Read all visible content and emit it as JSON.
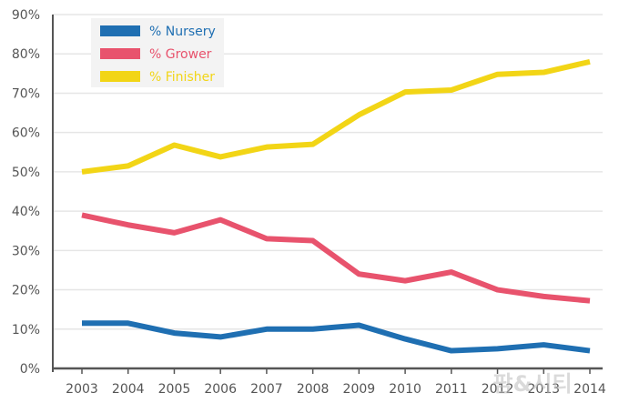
{
  "chart_data": {
    "type": "line",
    "title": "",
    "xlabel": "",
    "ylabel": "",
    "x": [
      "2003",
      "2004",
      "2005",
      "2006",
      "2007",
      "2008",
      "2009",
      "2010",
      "2011",
      "2012",
      "2013",
      "2014"
    ],
    "ylim": [
      0,
      90
    ],
    "yticks": [
      "0%",
      "10%",
      "20%",
      "30%",
      "40%",
      "50%",
      "60%",
      "70%",
      "80%",
      "90%"
    ],
    "grid": "horizontal",
    "legend_position": "top-left",
    "series": [
      {
        "name": "% Nursery",
        "color": "#1f6fb2",
        "values": [
          11.5,
          11.5,
          9,
          8,
          10,
          10,
          11,
          7.5,
          4.5,
          5,
          6,
          4.5
        ]
      },
      {
        "name": "% Grower",
        "color": "#e8536d",
        "values": [
          39,
          36.5,
          34.5,
          37.8,
          33,
          32.5,
          24,
          22.3,
          24.5,
          20,
          18.3,
          17.2
        ]
      },
      {
        "name": "% Finisher",
        "color": "#f2d516",
        "values": [
          50,
          51.5,
          56.8,
          53.8,
          56.3,
          57,
          64.5,
          70.3,
          70.8,
          74.8,
          75.3,
          78
        ]
      }
    ]
  },
  "watermark": "팜&시티"
}
